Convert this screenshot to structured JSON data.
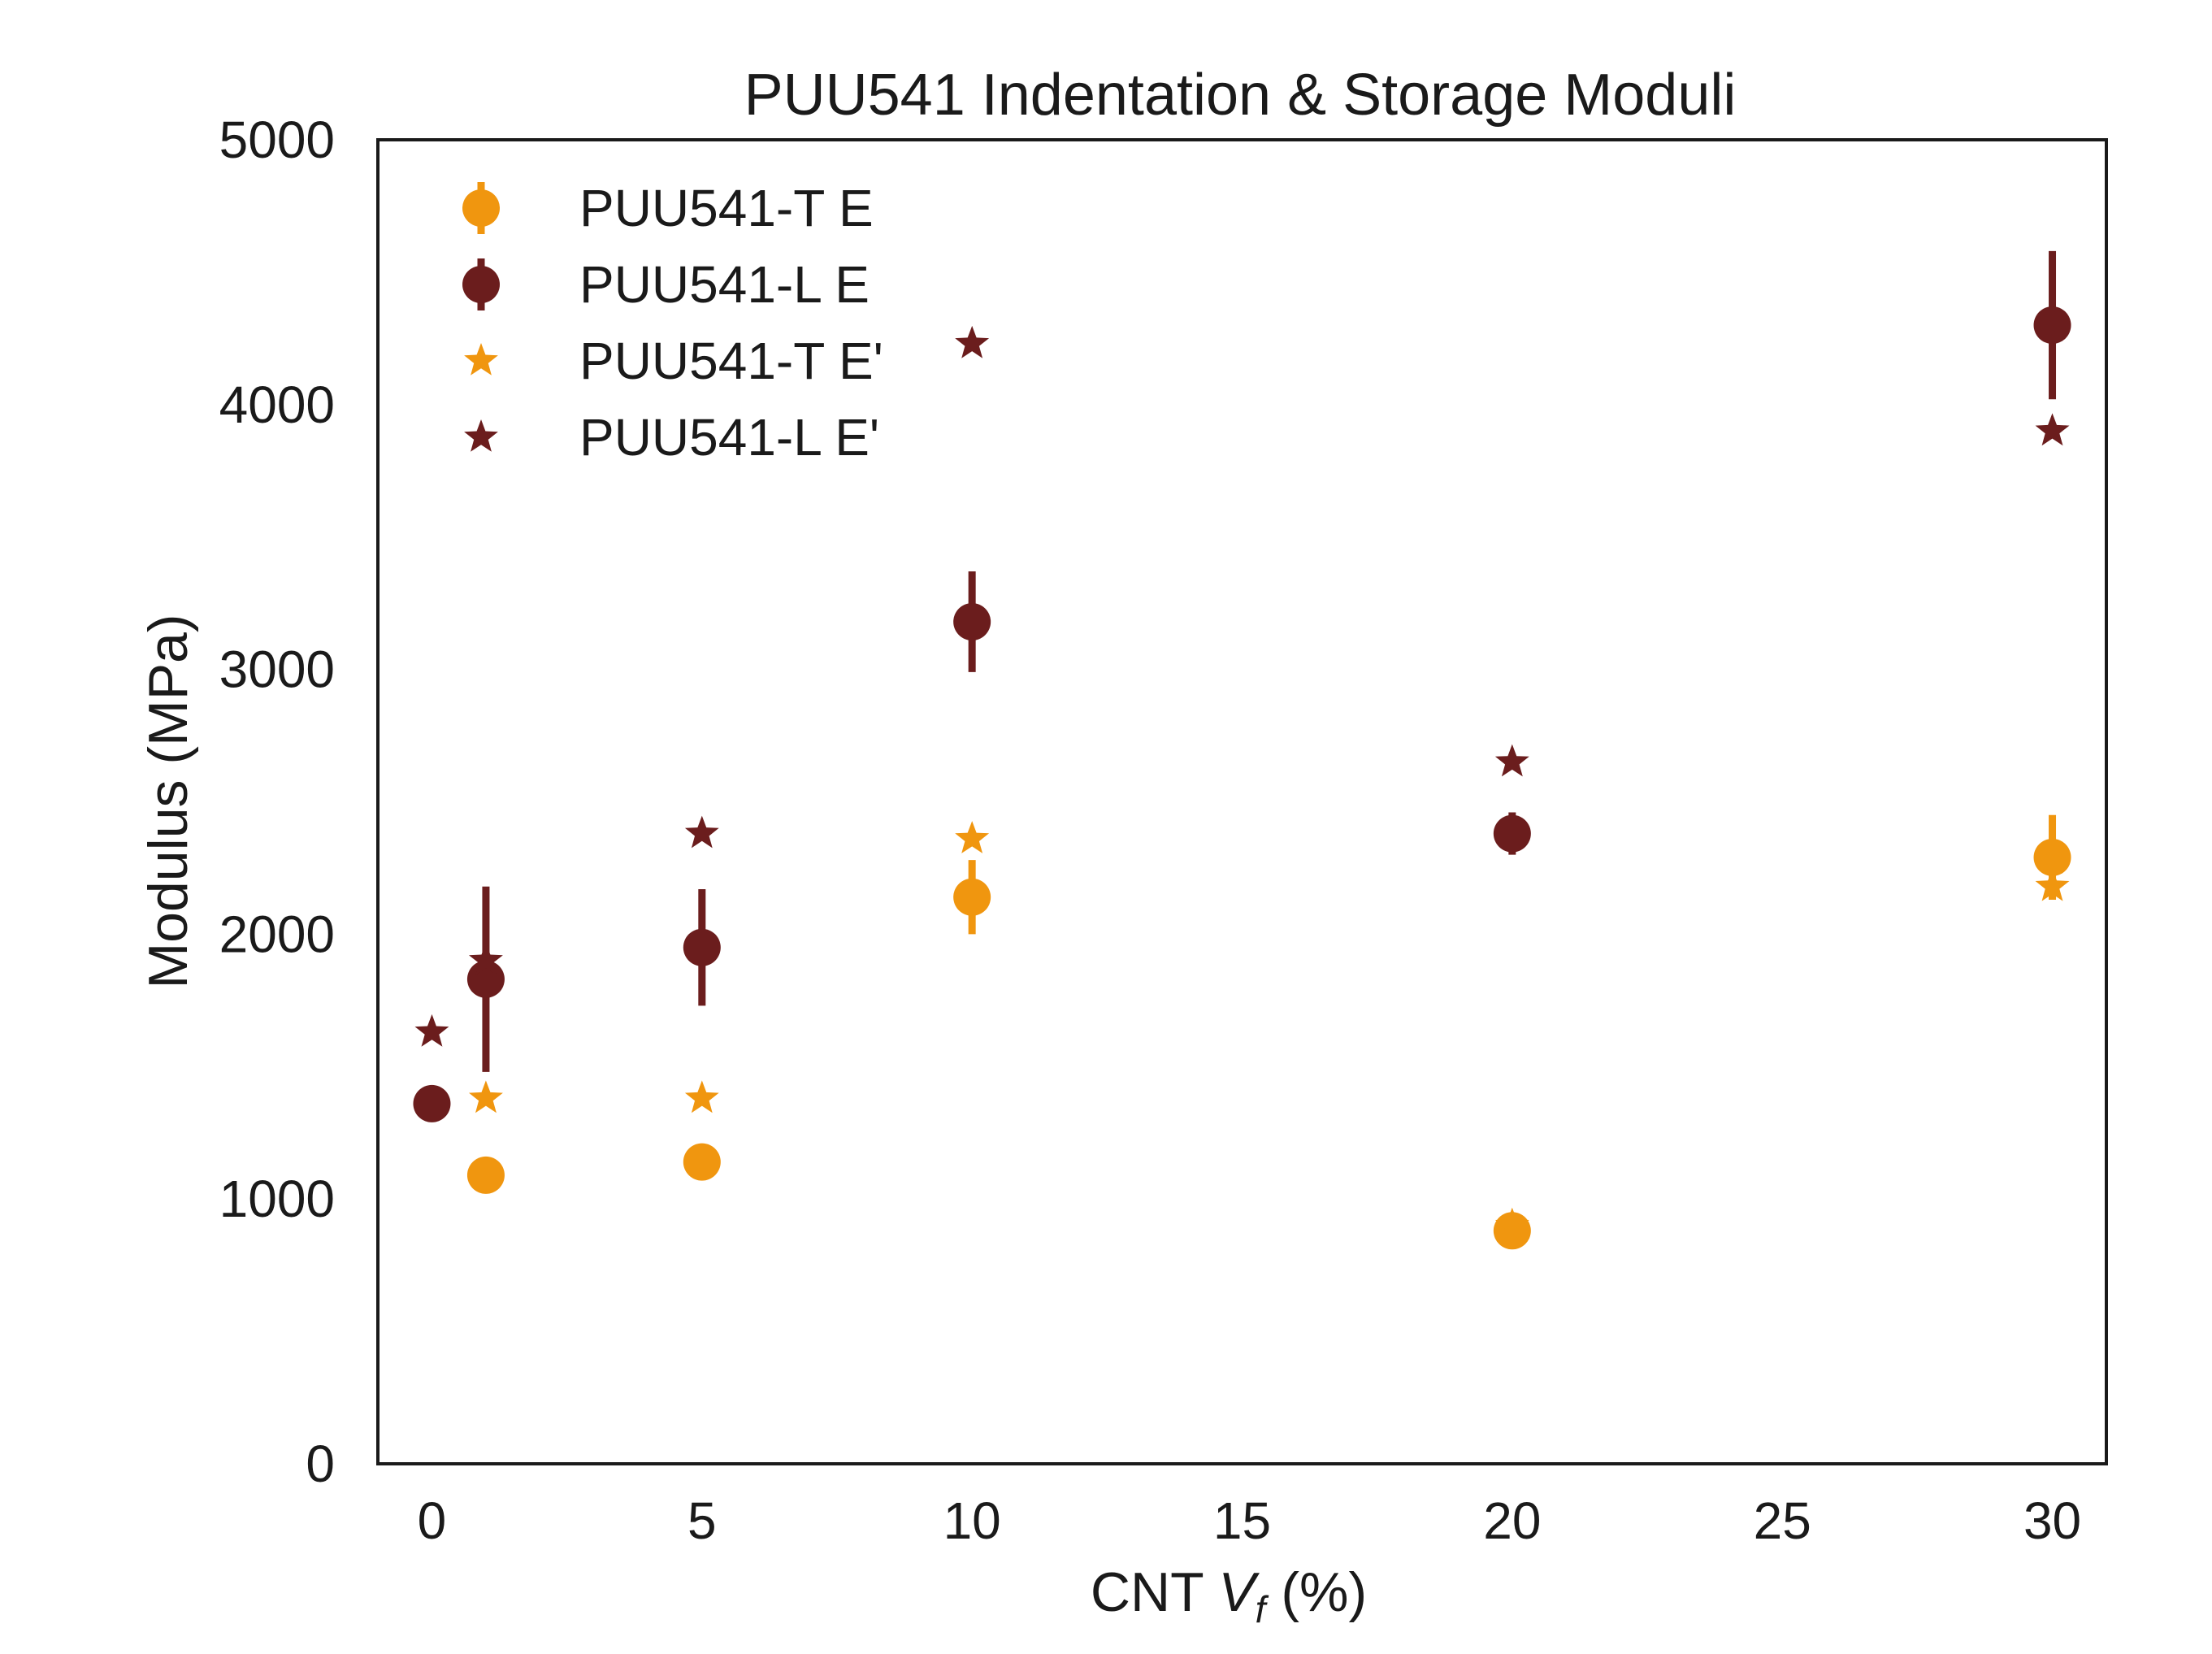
{
  "chart_data": {
    "type": "scatter",
    "title": "PUU541 Indentation & Storage Moduli",
    "xlabel": {
      "prefix": "CNT ",
      "var": "V",
      "sub": "f",
      "suffix": " (%)"
    },
    "ylabel": "Modulus (MPa)",
    "xlim": [
      -1,
      31
    ],
    "ylim": [
      0,
      5000
    ],
    "xticks": [
      0,
      5,
      10,
      15,
      20,
      25,
      30
    ],
    "yticks": [
      0,
      1000,
      2000,
      3000,
      4000,
      5000
    ],
    "grid": false,
    "legend_position": "top-left",
    "series": [
      {
        "name": "PUU541-T E",
        "marker": "circle",
        "color": "#f0960f",
        "points": [
          {
            "x": 1,
            "y": 1090,
            "err": 60
          },
          {
            "x": 5,
            "y": 1140,
            "err": 40
          },
          {
            "x": 10,
            "y": 2140,
            "err": 140
          },
          {
            "x": 20,
            "y": 880,
            "err": 40
          },
          {
            "x": 30,
            "y": 2290,
            "err": 160
          }
        ]
      },
      {
        "name": "PUU541-L E",
        "marker": "circle",
        "color": "#6b1d1d",
        "points": [
          {
            "x": 0,
            "y": 1360,
            "err": 20
          },
          {
            "x": 1,
            "y": 1830,
            "err": 350
          },
          {
            "x": 5,
            "y": 1950,
            "err": 220
          },
          {
            "x": 10,
            "y": 3180,
            "err": 190
          },
          {
            "x": 20,
            "y": 2380,
            "err": 80
          },
          {
            "x": 30,
            "y": 4300,
            "err": 280
          }
        ]
      },
      {
        "name": "PUU541-T E'",
        "marker": "star",
        "color": "#f0960f",
        "points": [
          {
            "x": 1,
            "y": 1380
          },
          {
            "x": 5,
            "y": 1380
          },
          {
            "x": 10,
            "y": 2360
          },
          {
            "x": 20,
            "y": 900
          },
          {
            "x": 30,
            "y": 2180
          }
        ]
      },
      {
        "name": "PUU541-L E'",
        "marker": "star",
        "color": "#6b1d1d",
        "points": [
          {
            "x": 0,
            "y": 1630
          },
          {
            "x": 1,
            "y": 1900
          },
          {
            "x": 5,
            "y": 2380
          },
          {
            "x": 10,
            "y": 4230
          },
          {
            "x": 20,
            "y": 2650
          },
          {
            "x": 30,
            "y": 3900
          }
        ]
      }
    ]
  }
}
